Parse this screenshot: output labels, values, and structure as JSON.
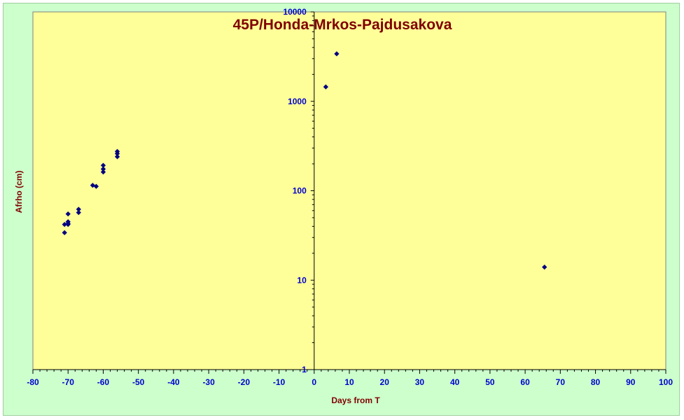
{
  "chart_data": {
    "type": "scatter",
    "title": "45P/Honda-Mrkos-Pajdusakova",
    "xlabel": "Days from T",
    "ylabel": "Afrho (cm)",
    "xlim": [
      -80,
      100
    ],
    "ylim": [
      1,
      10000
    ],
    "yscale": "log",
    "x_ticks": [
      "-80",
      "-70",
      "-60",
      "-50",
      "-40",
      "-30",
      "-20",
      "-10",
      "0",
      "10",
      "20",
      "30",
      "40",
      "50",
      "60",
      "70",
      "80",
      "90",
      "100"
    ],
    "y_ticks": [
      "1",
      "10",
      "100",
      "1000",
      "10000"
    ],
    "grid": false,
    "legend": "none",
    "colors": {
      "plot_background": "#ffff99",
      "chart_background": "#ccffcc",
      "marker": "#000080",
      "title": "#800000",
      "ticks": "#0000cc"
    },
    "series": [
      {
        "points": [
          {
            "x": -71,
            "y": 34
          },
          {
            "x": -71,
            "y": 42
          },
          {
            "x": -70,
            "y": 43
          },
          {
            "x": -70,
            "y": 45
          },
          {
            "x": -70,
            "y": 42
          },
          {
            "x": -70,
            "y": 55
          },
          {
            "x": -67,
            "y": 57
          },
          {
            "x": -67,
            "y": 62
          },
          {
            "x": -63,
            "y": 115
          },
          {
            "x": -62,
            "y": 112
          },
          {
            "x": -60,
            "y": 162
          },
          {
            "x": -60,
            "y": 175
          },
          {
            "x": -60,
            "y": 192
          },
          {
            "x": -56,
            "y": 240
          },
          {
            "x": -56,
            "y": 260
          },
          {
            "x": -56,
            "y": 275
          },
          {
            "x": 3.3,
            "y": 1450
          },
          {
            "x": 6.4,
            "y": 3400
          },
          {
            "x": 65.5,
            "y": 14
          }
        ]
      }
    ]
  }
}
